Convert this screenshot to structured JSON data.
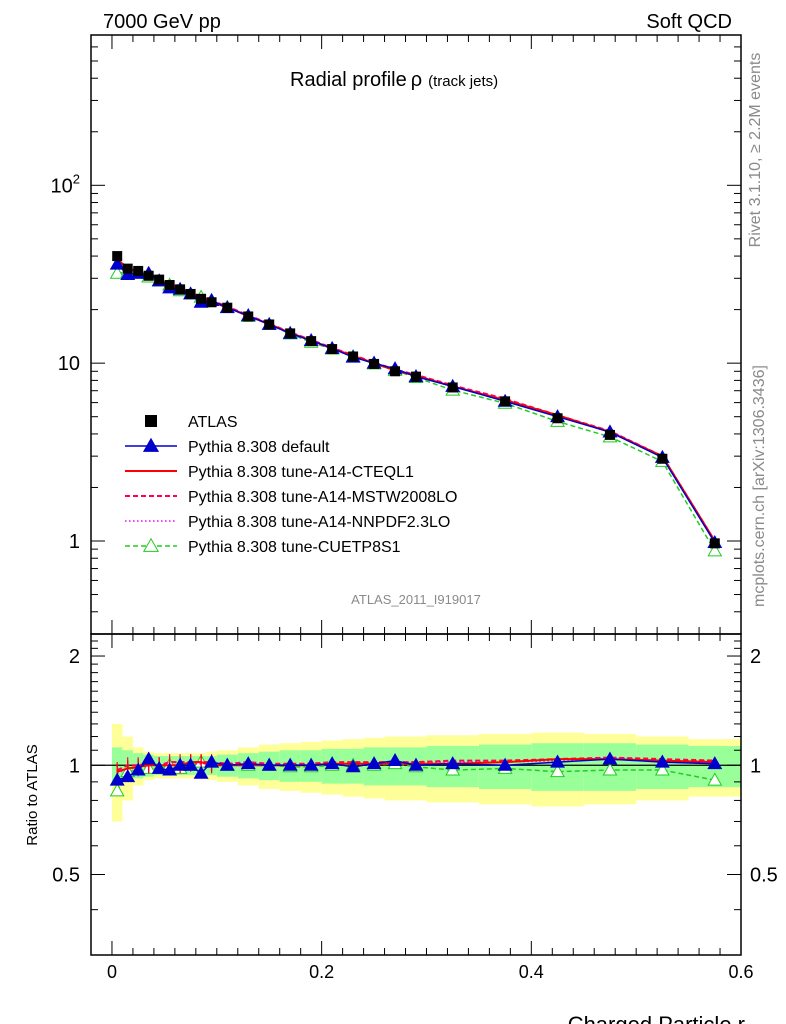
{
  "header": {
    "left": "7000 GeV pp",
    "right": "Soft QCD"
  },
  "side_labels": {
    "top": "Rivet 3.1.10, ≥ 2.2M events",
    "bottom": "mcplots.cern.ch [arXiv:1306.3436]"
  },
  "chart_data": {
    "type": "line",
    "title": "Radial profile",
    "title_symbol": "ρ",
    "subtitle": "(track jets)",
    "xlabel": "Charged Particle r",
    "ylabel_ratio": "Ratio to ATLAS",
    "watermark": "ATLAS_2011_I919017",
    "xlim": [
      -0.02,
      0.6
    ],
    "ylim_main": [
      0.3,
      700
    ],
    "yscale_main": "log",
    "ylim_ratio": [
      0.3,
      2.3
    ],
    "yscale_ratio": "log",
    "x_ticks": [
      "0",
      "0.2",
      "0.4",
      "0.6"
    ],
    "y_ticks_main": [
      "1",
      "10",
      "10^2"
    ],
    "y_ticks_ratio": [
      "0.5",
      "1",
      "2"
    ],
    "grid": false,
    "legend_position": "lower-left",
    "colors": {
      "data": "#000000",
      "default": "#0000cc",
      "a14": "#ff0000",
      "mstw": "#ff0055",
      "nnpdf": "#ff00ff",
      "cuetp8s1": "#22cc22",
      "band_inner": "#99ff99",
      "band_outer": "#ffff99"
    },
    "x": [
      0.005,
      0.015,
      0.025,
      0.035,
      0.045,
      0.055,
      0.065,
      0.075,
      0.085,
      0.095,
      0.11,
      0.13,
      0.15,
      0.17,
      0.19,
      0.21,
      0.23,
      0.25,
      0.27,
      0.29,
      0.325,
      0.375,
      0.425,
      0.475,
      0.525,
      0.575
    ],
    "series": [
      {
        "name": "ATLAS",
        "key": "data",
        "style": "marker",
        "values": [
          40,
          34,
          33,
          31,
          29.5,
          27.5,
          26,
          24.5,
          23,
          22,
          20.5,
          18.3,
          16.5,
          14.7,
          13.3,
          12,
          10.9,
          9.9,
          9,
          8.4,
          7.3,
          6.1,
          4.9,
          3.95,
          2.9,
          0.97
        ]
      },
      {
        "name": "Pythia 8.308 default",
        "key": "default",
        "style": "solid-filled-triangle",
        "values": [
          36,
          31.5,
          32,
          32,
          29,
          26.5,
          26,
          24.5,
          22,
          22.5,
          20.5,
          18.5,
          16.5,
          14.7,
          13.4,
          12.1,
          10.8,
          10,
          9.3,
          8.4,
          7.4,
          6.1,
          5,
          4.1,
          2.95,
          0.98
        ]
      },
      {
        "name": "Pythia 8.308 tune-A14-CTEQL1",
        "key": "a14",
        "style": "solid",
        "values": [
          38.5,
          34,
          32.5,
          31,
          29.5,
          27.5,
          26,
          25,
          23.5,
          22,
          20.6,
          18.4,
          16.6,
          14.8,
          13.4,
          12.1,
          11,
          10,
          9.1,
          8.5,
          7.4,
          6.2,
          5.1,
          4.1,
          3.0,
          1.0
        ]
      },
      {
        "name": "Pythia 8.308 tune-A14-MSTW2008LO",
        "key": "mstw",
        "style": "dashed",
        "values": [
          39,
          34,
          33,
          31.5,
          29.5,
          28,
          26.5,
          25,
          23.5,
          22.5,
          20.8,
          18.6,
          16.7,
          14.9,
          13.5,
          12.2,
          11.1,
          10.1,
          9.2,
          8.6,
          7.5,
          6.3,
          5.1,
          4.15,
          3.0,
          1.0
        ]
      },
      {
        "name": "Pythia 8.308 tune-A14-NNPDF2.3LO",
        "key": "nnpdf",
        "style": "dotted",
        "values": [
          38,
          33.5,
          32.5,
          31,
          29.5,
          27.5,
          26,
          24.8,
          23.3,
          22.2,
          20.7,
          18.5,
          16.6,
          14.8,
          13.4,
          12.1,
          11,
          10.05,
          9.15,
          8.55,
          7.45,
          6.25,
          5.05,
          4.15,
          3.0,
          1.0
        ]
      },
      {
        "name": "Pythia 8.308 tune-CUETP8S1",
        "key": "cuetp8s1",
        "style": "dashed-open-triangle",
        "values": [
          32,
          32.5,
          32,
          30.5,
          29,
          27.5,
          25.5,
          24.5,
          23.5,
          22.5,
          20.6,
          18.3,
          16.5,
          14.6,
          13.1,
          12,
          10.9,
          9.9,
          9.1,
          8.3,
          7.05,
          5.95,
          4.7,
          3.85,
          2.8,
          0.88
        ]
      }
    ],
    "ratio": {
      "x_edges": [
        0,
        0.01,
        0.02,
        0.03,
        0.04,
        0.05,
        0.06,
        0.07,
        0.08,
        0.09,
        0.1,
        0.12,
        0.14,
        0.16,
        0.18,
        0.2,
        0.22,
        0.24,
        0.26,
        0.28,
        0.3,
        0.35,
        0.4,
        0.45,
        0.5,
        0.55,
        0.6
      ],
      "band_inner_half": [
        0.12,
        0.1,
        0.08,
        0.07,
        0.06,
        0.06,
        0.06,
        0.06,
        0.06,
        0.06,
        0.07,
        0.08,
        0.09,
        0.1,
        0.1,
        0.11,
        0.11,
        0.12,
        0.12,
        0.12,
        0.13,
        0.14,
        0.15,
        0.15,
        0.14,
        0.13
      ],
      "band_outer_half": [
        0.3,
        0.2,
        0.12,
        0.09,
        0.08,
        0.08,
        0.08,
        0.08,
        0.08,
        0.09,
        0.1,
        0.12,
        0.14,
        0.15,
        0.16,
        0.17,
        0.18,
        0.19,
        0.2,
        0.2,
        0.21,
        0.22,
        0.23,
        0.22,
        0.2,
        0.18
      ],
      "series": {
        "default": [
          0.91,
          0.93,
          0.97,
          1.04,
          0.98,
          0.97,
          1.0,
          1.0,
          0.95,
          1.02,
          1.0,
          1.01,
          1.0,
          1.0,
          1.0,
          1.01,
          0.99,
          1.01,
          1.03,
          1.0,
          1.01,
          1.0,
          1.02,
          1.04,
          1.02,
          1.01
        ],
        "a14": [
          0.96,
          0.98,
          0.99,
          1.0,
          1.0,
          1.0,
          1.0,
          1.02,
          1.02,
          1.0,
          1.0,
          1.0,
          1.0,
          1.0,
          1.0,
          1.01,
          1.01,
          1.01,
          1.01,
          1.01,
          1.01,
          1.02,
          1.04,
          1.04,
          1.03,
          1.02
        ],
        "mstw": [
          0.97,
          1.0,
          1.0,
          1.01,
          1.0,
          1.02,
          1.02,
          1.02,
          1.02,
          1.02,
          1.01,
          1.02,
          1.01,
          1.01,
          1.01,
          1.02,
          1.02,
          1.02,
          1.02,
          1.02,
          1.03,
          1.03,
          1.04,
          1.05,
          1.04,
          1.03
        ],
        "nnpdf": [
          0.95,
          0.98,
          0.98,
          1.0,
          1.0,
          1.0,
          1.0,
          1.01,
          1.01,
          1.01,
          1.01,
          1.01,
          1.0,
          1.0,
          1.01,
          1.01,
          1.01,
          1.02,
          1.02,
          1.02,
          1.02,
          1.02,
          1.03,
          1.05,
          1.03,
          1.03
        ],
        "cuetp8s1": [
          0.85,
          0.96,
          0.97,
          0.98,
          0.98,
          1.0,
          0.98,
          1.0,
          1.02,
          1.02,
          1.0,
          1.0,
          1.0,
          0.99,
          0.99,
          1.0,
          1.0,
          1.0,
          1.01,
          0.99,
          0.97,
          0.98,
          0.96,
          0.97,
          0.97,
          0.91
        ]
      }
    }
  }
}
